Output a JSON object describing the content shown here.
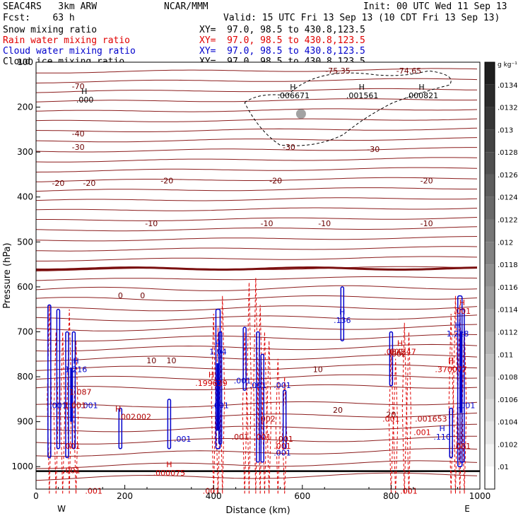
{
  "header": {
    "project": "SEAC4RS   3km ARW",
    "org": "NCAR/MMM",
    "init": "Init: 00 UTC Wed 11 Sep 13",
    "fcst": "Fcst:    63 h",
    "valid": "Valid: 15 UTC Fri 13 Sep 13 (10 CDT Fri 13 Sep 13)",
    "fields": [
      {
        "name": "Snow mixing ratio",
        "xy": "XY=  97.0, 98.5 to 430.8,123.5",
        "color": "#000000"
      },
      {
        "name": "Rain water mixing ratio",
        "xy": "XY=  97.0, 98.5 to 430.8,123.5",
        "color": "#e00000"
      },
      {
        "name": "Cloud water mixing ratio",
        "xy": "XY=  97.0, 98.5 to 430.8,123.5",
        "color": "#0000cc"
      },
      {
        "name": "Cloud ice mixing ratio",
        "xy": "XY=  97.0, 98.5 to 430.8,123.5",
        "color": "#000000"
      }
    ]
  },
  "chart_data": {
    "type": "cross-section",
    "xlabel": "Distance (km)",
    "ylabel": "Pressure (hPa)",
    "xlim": [
      0,
      1000
    ],
    "ylim": [
      1050,
      100
    ],
    "x_ticks": [
      0,
      200,
      400,
      600,
      800,
      1000
    ],
    "y_ticks": [
      200,
      300,
      400,
      500,
      600,
      700,
      800,
      900,
      1000
    ],
    "y_ticks_labeled": [
      "100",
      "200",
      "300",
      "400",
      "500",
      "600",
      "700",
      "800",
      "900",
      "1000"
    ],
    "left_end_label": "W",
    "right_end_label": "E",
    "colorbar": {
      "unit": "g kg⁻¹",
      "ticks": [
        ".0134",
        ".0132",
        ".013",
        ".0128",
        ".0126",
        ".0124",
        ".0122",
        ".012",
        ".0118",
        ".0116",
        ".0114",
        ".0112",
        ".011",
        ".0108",
        ".0106",
        ".0104",
        ".0102",
        ".01"
      ]
    },
    "temperature_isotherms": [
      {
        "label": "-75.35",
        "x": 680,
        "p": 125
      },
      {
        "label": "-74.65",
        "x": 840,
        "p": 125
      },
      {
        "label": "-70",
        "x": 95,
        "p": 160
      },
      {
        "label": "-40",
        "x": 95,
        "p": 265
      },
      {
        "label": "-30",
        "x": 95,
        "p": 295
      },
      {
        "label": "-30",
        "x": 570,
        "p": 295
      },
      {
        "label": "-30",
        "x": 760,
        "p": 300
      },
      {
        "label": "-20",
        "x": 50,
        "p": 375
      },
      {
        "label": "-20",
        "x": 120,
        "p": 375
      },
      {
        "label": "-20",
        "x": 295,
        "p": 370
      },
      {
        "label": "-20",
        "x": 540,
        "p": 370
      },
      {
        "label": "-20",
        "x": 880,
        "p": 370
      },
      {
        "label": "-10",
        "x": 260,
        "p": 465
      },
      {
        "label": "-10",
        "x": 520,
        "p": 465
      },
      {
        "label": "-10",
        "x": 650,
        "p": 465
      },
      {
        "label": "-10",
        "x": 880,
        "p": 465
      },
      {
        "label": "0",
        "x": 190,
        "p": 625
      },
      {
        "label": "0",
        "x": 240,
        "p": 625
      },
      {
        "label": "10",
        "x": 260,
        "p": 770
      },
      {
        "label": "10",
        "x": 305,
        "p": 770
      },
      {
        "label": "10",
        "x": 635,
        "p": 790
      },
      {
        "label": "20",
        "x": 680,
        "p": 880
      },
      {
        "label": "20",
        "x": 800,
        "p": 890
      }
    ],
    "snow_maxima": [
      {
        "label": "H",
        "value": ".000",
        "x": 110,
        "p": 190
      },
      {
        "label": "H",
        "value": ".006671",
        "x": 580,
        "p": 180
      },
      {
        "label": "H",
        "value": ".001561",
        "x": 735,
        "p": 180
      },
      {
        "label": "H",
        "value": ".000821",
        "x": 870,
        "p": 180
      }
    ],
    "cloud_water_maxima": [
      {
        "label": "H",
        "value": ".136",
        "x": 690,
        "p": 680
      },
      {
        "label": "H",
        "value": "1.04",
        "x": 410,
        "p": 750
      },
      {
        "label": "H",
        "value": "1.216",
        "x": 90,
        "p": 790
      },
      {
        "label": "H",
        "value": "1.228",
        "x": 950,
        "p": 710
      },
      {
        "label": ".001",
        "x": 465,
        "p": 815
      },
      {
        "label": ".001",
        "x": 500,
        "p": 825
      },
      {
        "label": ".001",
        "x": 555,
        "p": 825
      },
      {
        "label": ".001",
        "x": 120,
        "p": 870
      },
      {
        "label": ".001",
        "x": 415,
        "p": 870
      },
      {
        "label": ".001",
        "x": 330,
        "p": 945
      },
      {
        "label": ".001",
        "x": 555,
        "p": 975
      },
      {
        "label": "H",
        "value": ".110",
        "x": 915,
        "p": 940
      },
      {
        "label": ".001",
        "x": 970,
        "p": 870
      },
      {
        "label": ".001",
        "x": 50,
        "p": 870
      }
    ],
    "rain_maxima": [
      {
        "label": "H",
        "value": ".001",
        "x": 960,
        "p": 660
      },
      {
        "label": "H",
        "value": ".004247",
        "x": 820,
        "p": 750
      },
      {
        "label": "H",
        "value": ".370077",
        "x": 935,
        "p": 790
      },
      {
        "label": "H",
        "value": ".199639",
        "x": 395,
        "p": 820
      },
      {
        "label": "H",
        "value": ".000075",
        "x": 300,
        "p": 1020
      },
      {
        "label": ".001",
        "x": 80,
        "p": 960
      },
      {
        "label": ".001",
        "x": 80,
        "p": 1015
      },
      {
        "label": ".001",
        "x": 130,
        "p": 1060
      },
      {
        "label": ".001",
        "x": 395,
        "p": 1060
      },
      {
        "label": ".001",
        "x": 510,
        "p": 940
      },
      {
        "label": ".001",
        "x": 555,
        "p": 960
      },
      {
        "label": ".001",
        "x": 840,
        "p": 1060
      },
      {
        "label": ".001",
        "x": 800,
        "p": 900
      },
      {
        "label": ".001",
        "x": 870,
        "p": 930
      }
    ],
    "orphan_labels": [
      {
        "label": "1.001",
        "x": 88,
        "p": 870
      },
      {
        "label": "1.087",
        "x": 100,
        "p": 840
      },
      {
        "label": "H",
        "x": 185,
        "p": 878
      },
      {
        "label": ".002",
        "x": 205,
        "p": 895
      },
      {
        "label": ".002",
        "x": 240,
        "p": 895
      },
      {
        "label": ".002",
        "x": 520,
        "p": 900
      },
      {
        "label": ".001",
        "x": 460,
        "p": 940
      },
      {
        "label": ".001",
        "x": 560,
        "p": 945
      },
      {
        "label": ".001",
        "x": 810,
        "p": 750
      },
      {
        "label": ".002",
        "x": 815,
        "p": 755
      },
      {
        "label": ".001653",
        "x": 890,
        "p": 900
      },
      {
        "label": ".001",
        "x": 960,
        "p": 960
      }
    ]
  }
}
